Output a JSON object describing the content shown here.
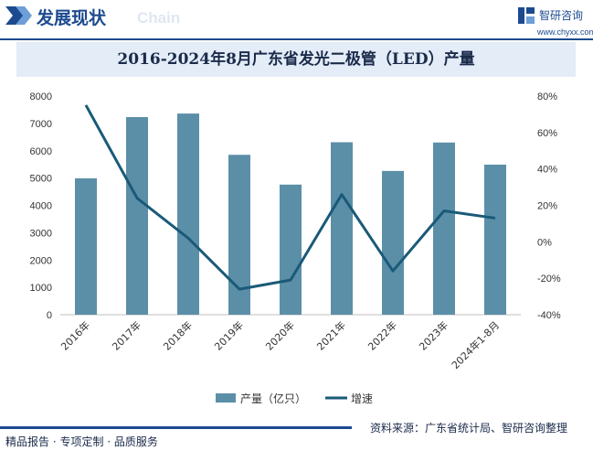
{
  "header": {
    "title": "发展现状",
    "watermark": "Chain",
    "brand_name": "智研咨询",
    "brand_url": "www.chyxx.com"
  },
  "footer": {
    "left": "精品报告 · 专项定制 · 品质服务",
    "right": "资料来源：广东省统计局、智研咨询整理"
  },
  "colors": {
    "bar": "#5b8fa8",
    "line": "#1a5a78",
    "header_accent": "#1c4a8f",
    "title_band": "#e3ecf7"
  },
  "chart_data": {
    "type": "bar+line",
    "title": "2016-2024年8月广东省发光二极管（LED）产量",
    "categories": [
      "2016年",
      "2017年",
      "2018年",
      "2019年",
      "2020年",
      "2021年",
      "2022年",
      "2023年",
      "2024年1-8月"
    ],
    "series": [
      {
        "name": "产量（亿只）",
        "type": "bar",
        "axis": "left",
        "values": [
          4990,
          7230,
          7360,
          5850,
          4760,
          6310,
          5260,
          6300,
          5490
        ]
      },
      {
        "name": "增速",
        "type": "line",
        "axis": "right",
        "values": [
          75,
          24,
          2,
          -26,
          -21,
          26,
          -16,
          17,
          13
        ]
      }
    ],
    "y_left": {
      "min": 0,
      "max": 8000,
      "step": 1000,
      "ticks": [
        "0",
        "1000",
        "2000",
        "3000",
        "4000",
        "5000",
        "6000",
        "7000",
        "8000"
      ]
    },
    "y_right": {
      "min": -40,
      "max": 80,
      "step": 20,
      "ticks": [
        "-40%",
        "-20%",
        "0%",
        "20%",
        "40%",
        "60%",
        "80%"
      ]
    },
    "grid": false,
    "legend_position": "bottom"
  }
}
